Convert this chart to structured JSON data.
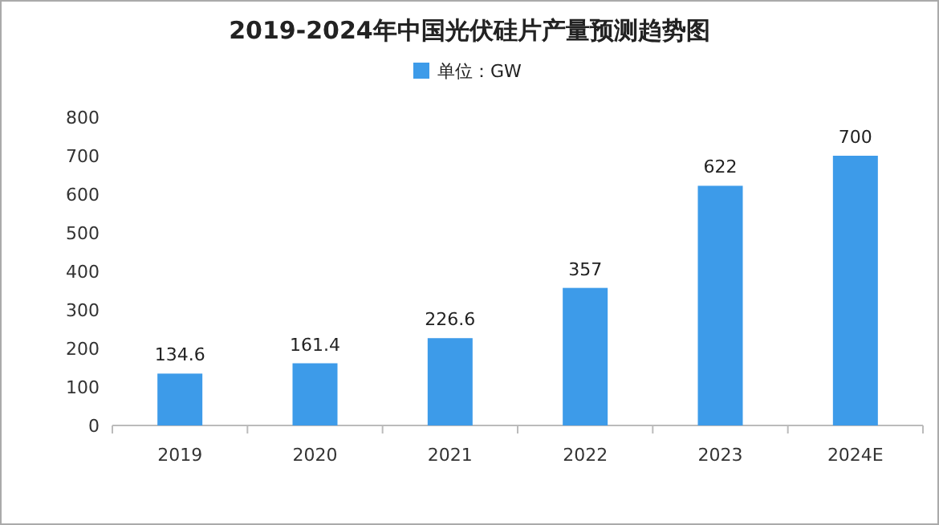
{
  "chart_data": {
    "type": "bar",
    "title": "2019-2024年中国光伏硅片产量预测趋势图",
    "categories": [
      "2019",
      "2020",
      "2021",
      "2022",
      "2023",
      "2024E"
    ],
    "series": [
      {
        "name": "单位：GW",
        "color": "#3d9be9",
        "values": [
          134.6,
          161.4,
          226.6,
          357,
          622,
          700
        ]
      }
    ],
    "ylim": [
      0,
      800
    ],
    "yticks": [
      0,
      100,
      200,
      300,
      400,
      500,
      600,
      700,
      800
    ],
    "data_labels": true,
    "legend": "top"
  }
}
